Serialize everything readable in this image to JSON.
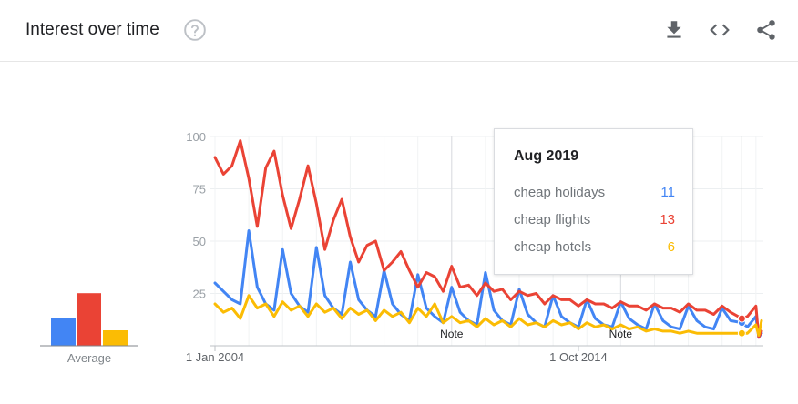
{
  "header": {
    "title": "Interest over time",
    "icons": [
      "help-icon",
      "download-icon",
      "embed-icon",
      "share-icon"
    ]
  },
  "colors": {
    "cheap_holidays": "#4285f4",
    "cheap_flights": "#ea4335",
    "cheap_hotels": "#fbbc04"
  },
  "chart_data": {
    "type": "line",
    "ylim": [
      0,
      100
    ],
    "yticks": [
      25,
      50,
      75,
      100
    ],
    "xrange": [
      "2004-01",
      "2020-03"
    ],
    "xtick_labels": [
      "1 Jan 2004",
      "1 Oct 2014"
    ],
    "notes": [
      {
        "label": "Note",
        "date": "2011-01"
      },
      {
        "label": "Note",
        "date": "2016-01"
      }
    ],
    "grid": true,
    "series": [
      {
        "name": "cheap holidays",
        "color": "#4285f4",
        "average": 18,
        "values": [
          {
            "x": "2004-01",
            "y": 30
          },
          {
            "x": "2004-04",
            "y": 26
          },
          {
            "x": "2004-07",
            "y": 22
          },
          {
            "x": "2004-10",
            "y": 20
          },
          {
            "x": "2005-01",
            "y": 55
          },
          {
            "x": "2005-04",
            "y": 28
          },
          {
            "x": "2005-07",
            "y": 20
          },
          {
            "x": "2005-10",
            "y": 17
          },
          {
            "x": "2006-01",
            "y": 46
          },
          {
            "x": "2006-04",
            "y": 25
          },
          {
            "x": "2006-07",
            "y": 19
          },
          {
            "x": "2006-10",
            "y": 16
          },
          {
            "x": "2007-01",
            "y": 47
          },
          {
            "x": "2007-04",
            "y": 24
          },
          {
            "x": "2007-07",
            "y": 18
          },
          {
            "x": "2007-10",
            "y": 15
          },
          {
            "x": "2008-01",
            "y": 40
          },
          {
            "x": "2008-04",
            "y": 22
          },
          {
            "x": "2008-07",
            "y": 17
          },
          {
            "x": "2008-10",
            "y": 14
          },
          {
            "x": "2009-01",
            "y": 36
          },
          {
            "x": "2009-04",
            "y": 20
          },
          {
            "x": "2009-07",
            "y": 15
          },
          {
            "x": "2009-10",
            "y": 12
          },
          {
            "x": "2010-01",
            "y": 34
          },
          {
            "x": "2010-04",
            "y": 18
          },
          {
            "x": "2010-07",
            "y": 14
          },
          {
            "x": "2010-10",
            "y": 11
          },
          {
            "x": "2011-01",
            "y": 28
          },
          {
            "x": "2011-04",
            "y": 16
          },
          {
            "x": "2011-07",
            "y": 12
          },
          {
            "x": "2011-10",
            "y": 10
          },
          {
            "x": "2012-01",
            "y": 35
          },
          {
            "x": "2012-04",
            "y": 17
          },
          {
            "x": "2012-07",
            "y": 12
          },
          {
            "x": "2012-10",
            "y": 10
          },
          {
            "x": "2013-01",
            "y": 27
          },
          {
            "x": "2013-04",
            "y": 15
          },
          {
            "x": "2013-07",
            "y": 11
          },
          {
            "x": "2013-10",
            "y": 9
          },
          {
            "x": "2014-01",
            "y": 24
          },
          {
            "x": "2014-04",
            "y": 14
          },
          {
            "x": "2014-07",
            "y": 11
          },
          {
            "x": "2014-10",
            "y": 9
          },
          {
            "x": "2015-01",
            "y": 22
          },
          {
            "x": "2015-04",
            "y": 13
          },
          {
            "x": "2015-07",
            "y": 10
          },
          {
            "x": "2015-10",
            "y": 9
          },
          {
            "x": "2016-01",
            "y": 21
          },
          {
            "x": "2016-04",
            "y": 13
          },
          {
            "x": "2016-07",
            "y": 10
          },
          {
            "x": "2016-10",
            "y": 8
          },
          {
            "x": "2017-01",
            "y": 20
          },
          {
            "x": "2017-04",
            "y": 12
          },
          {
            "x": "2017-07",
            "y": 9
          },
          {
            "x": "2017-10",
            "y": 8
          },
          {
            "x": "2018-01",
            "y": 19
          },
          {
            "x": "2018-04",
            "y": 12
          },
          {
            "x": "2018-07",
            "y": 9
          },
          {
            "x": "2018-10",
            "y": 8
          },
          {
            "x": "2019-01",
            "y": 18
          },
          {
            "x": "2019-04",
            "y": 12
          },
          {
            "x": "2019-08",
            "y": 11
          },
          {
            "x": "2019-10",
            "y": 9
          },
          {
            "x": "2020-01",
            "y": 14
          },
          {
            "x": "2020-02",
            "y": 4
          },
          {
            "x": "2020-03",
            "y": 6
          }
        ]
      },
      {
        "name": "cheap flights",
        "color": "#ea4335",
        "average": 34,
        "values": [
          {
            "x": "2004-01",
            "y": 90
          },
          {
            "x": "2004-04",
            "y": 82
          },
          {
            "x": "2004-07",
            "y": 86
          },
          {
            "x": "2004-10",
            "y": 98
          },
          {
            "x": "2005-01",
            "y": 80
          },
          {
            "x": "2005-04",
            "y": 57
          },
          {
            "x": "2005-07",
            "y": 85
          },
          {
            "x": "2005-10",
            "y": 93
          },
          {
            "x": "2006-01",
            "y": 72
          },
          {
            "x": "2006-04",
            "y": 56
          },
          {
            "x": "2006-07",
            "y": 70
          },
          {
            "x": "2006-10",
            "y": 86
          },
          {
            "x": "2007-01",
            "y": 68
          },
          {
            "x": "2007-04",
            "y": 46
          },
          {
            "x": "2007-07",
            "y": 60
          },
          {
            "x": "2007-10",
            "y": 70
          },
          {
            "x": "2008-01",
            "y": 52
          },
          {
            "x": "2008-04",
            "y": 40
          },
          {
            "x": "2008-07",
            "y": 48
          },
          {
            "x": "2008-10",
            "y": 50
          },
          {
            "x": "2009-01",
            "y": 36
          },
          {
            "x": "2009-04",
            "y": 40
          },
          {
            "x": "2009-07",
            "y": 45
          },
          {
            "x": "2009-10",
            "y": 36
          },
          {
            "x": "2010-01",
            "y": 28
          },
          {
            "x": "2010-04",
            "y": 35
          },
          {
            "x": "2010-07",
            "y": 33
          },
          {
            "x": "2010-10",
            "y": 26
          },
          {
            "x": "2011-01",
            "y": 38
          },
          {
            "x": "2011-04",
            "y": 28
          },
          {
            "x": "2011-07",
            "y": 29
          },
          {
            "x": "2011-10",
            "y": 24
          },
          {
            "x": "2012-01",
            "y": 30
          },
          {
            "x": "2012-04",
            "y": 26
          },
          {
            "x": "2012-07",
            "y": 27
          },
          {
            "x": "2012-10",
            "y": 22
          },
          {
            "x": "2013-01",
            "y": 26
          },
          {
            "x": "2013-04",
            "y": 24
          },
          {
            "x": "2013-07",
            "y": 25
          },
          {
            "x": "2013-10",
            "y": 20
          },
          {
            "x": "2014-01",
            "y": 24
          },
          {
            "x": "2014-04",
            "y": 22
          },
          {
            "x": "2014-07",
            "y": 22
          },
          {
            "x": "2014-10",
            "y": 19
          },
          {
            "x": "2015-01",
            "y": 22
          },
          {
            "x": "2015-04",
            "y": 20
          },
          {
            "x": "2015-07",
            "y": 20
          },
          {
            "x": "2015-10",
            "y": 18
          },
          {
            "x": "2016-01",
            "y": 21
          },
          {
            "x": "2016-04",
            "y": 19
          },
          {
            "x": "2016-07",
            "y": 19
          },
          {
            "x": "2016-10",
            "y": 17
          },
          {
            "x": "2017-01",
            "y": 20
          },
          {
            "x": "2017-04",
            "y": 18
          },
          {
            "x": "2017-07",
            "y": 18
          },
          {
            "x": "2017-10",
            "y": 16
          },
          {
            "x": "2018-01",
            "y": 20
          },
          {
            "x": "2018-04",
            "y": 17
          },
          {
            "x": "2018-07",
            "y": 17
          },
          {
            "x": "2018-10",
            "y": 15
          },
          {
            "x": "2019-01",
            "y": 19
          },
          {
            "x": "2019-04",
            "y": 16
          },
          {
            "x": "2019-08",
            "y": 13
          },
          {
            "x": "2019-10",
            "y": 14
          },
          {
            "x": "2020-01",
            "y": 19
          },
          {
            "x": "2020-02",
            "y": 4
          },
          {
            "x": "2020-03",
            "y": 7
          }
        ]
      },
      {
        "name": "cheap hotels",
        "color": "#fbbc04",
        "average": 10,
        "values": [
          {
            "x": "2004-01",
            "y": 20
          },
          {
            "x": "2004-04",
            "y": 16
          },
          {
            "x": "2004-07",
            "y": 18
          },
          {
            "x": "2004-10",
            "y": 13
          },
          {
            "x": "2005-01",
            "y": 24
          },
          {
            "x": "2005-04",
            "y": 18
          },
          {
            "x": "2005-07",
            "y": 20
          },
          {
            "x": "2005-10",
            "y": 14
          },
          {
            "x": "2006-01",
            "y": 21
          },
          {
            "x": "2006-04",
            "y": 17
          },
          {
            "x": "2006-07",
            "y": 19
          },
          {
            "x": "2006-10",
            "y": 14
          },
          {
            "x": "2007-01",
            "y": 20
          },
          {
            "x": "2007-04",
            "y": 16
          },
          {
            "x": "2007-07",
            "y": 18
          },
          {
            "x": "2007-10",
            "y": 13
          },
          {
            "x": "2008-01",
            "y": 18
          },
          {
            "x": "2008-04",
            "y": 15
          },
          {
            "x": "2008-07",
            "y": 17
          },
          {
            "x": "2008-10",
            "y": 12
          },
          {
            "x": "2009-01",
            "y": 17
          },
          {
            "x": "2009-04",
            "y": 14
          },
          {
            "x": "2009-07",
            "y": 16
          },
          {
            "x": "2009-10",
            "y": 11
          },
          {
            "x": "2010-01",
            "y": 18
          },
          {
            "x": "2010-04",
            "y": 14
          },
          {
            "x": "2010-07",
            "y": 20
          },
          {
            "x": "2010-10",
            "y": 11
          },
          {
            "x": "2011-01",
            "y": 14
          },
          {
            "x": "2011-04",
            "y": 11
          },
          {
            "x": "2011-07",
            "y": 12
          },
          {
            "x": "2011-10",
            "y": 9
          },
          {
            "x": "2012-01",
            "y": 13
          },
          {
            "x": "2012-04",
            "y": 10
          },
          {
            "x": "2012-07",
            "y": 12
          },
          {
            "x": "2012-10",
            "y": 9
          },
          {
            "x": "2013-01",
            "y": 13
          },
          {
            "x": "2013-04",
            "y": 10
          },
          {
            "x": "2013-07",
            "y": 11
          },
          {
            "x": "2013-10",
            "y": 9
          },
          {
            "x": "2014-01",
            "y": 12
          },
          {
            "x": "2014-04",
            "y": 10
          },
          {
            "x": "2014-07",
            "y": 11
          },
          {
            "x": "2014-10",
            "y": 8
          },
          {
            "x": "2015-01",
            "y": 11
          },
          {
            "x": "2015-04",
            "y": 9
          },
          {
            "x": "2015-07",
            "y": 10
          },
          {
            "x": "2015-10",
            "y": 8
          },
          {
            "x": "2016-01",
            "y": 10
          },
          {
            "x": "2016-04",
            "y": 8
          },
          {
            "x": "2016-07",
            "y": 9
          },
          {
            "x": "2016-10",
            "y": 7
          },
          {
            "x": "2017-01",
            "y": 8
          },
          {
            "x": "2017-04",
            "y": 7
          },
          {
            "x": "2017-07",
            "y": 7
          },
          {
            "x": "2017-10",
            "y": 6
          },
          {
            "x": "2018-01",
            "y": 7
          },
          {
            "x": "2018-04",
            "y": 6
          },
          {
            "x": "2018-07",
            "y": 6
          },
          {
            "x": "2018-10",
            "y": 6
          },
          {
            "x": "2019-01",
            "y": 6
          },
          {
            "x": "2019-04",
            "y": 6
          },
          {
            "x": "2019-08",
            "y": 6
          },
          {
            "x": "2019-10",
            "y": 6
          },
          {
            "x": "2020-01",
            "y": 10
          },
          {
            "x": "2020-02",
            "y": 5
          },
          {
            "x": "2020-03",
            "y": 12
          }
        ]
      }
    ]
  },
  "average": {
    "label": "Average"
  },
  "tooltip": {
    "title": "Aug 2019",
    "rows": [
      {
        "name": "cheap holidays",
        "value": "11",
        "color": "#4285f4"
      },
      {
        "name": "cheap flights",
        "value": "13",
        "color": "#ea4335"
      },
      {
        "name": "cheap hotels",
        "value": "6",
        "color": "#fbbc04"
      }
    ]
  }
}
